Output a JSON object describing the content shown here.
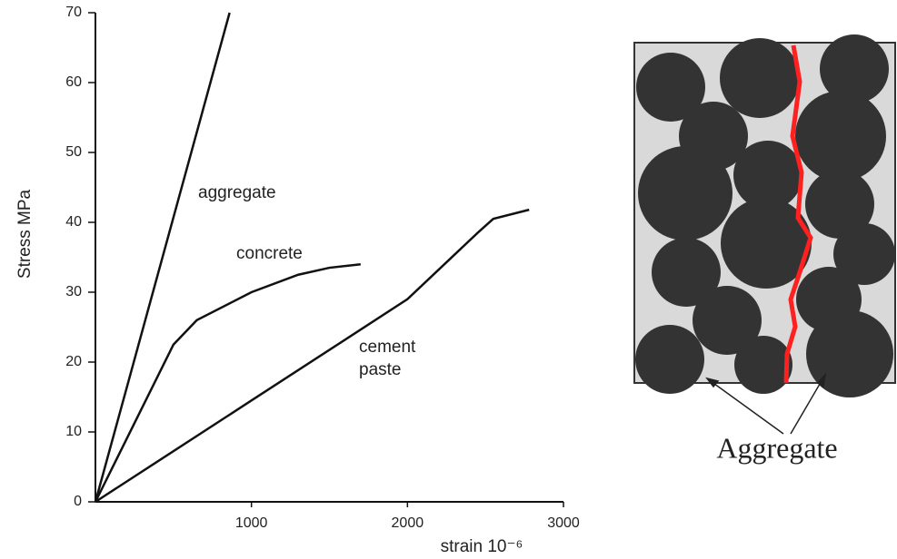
{
  "chart_data": {
    "type": "line",
    "y_label": "Stress MPa",
    "x_label": "strain 10⁻⁶",
    "xlim": [
      0,
      3000
    ],
    "xticks": [
      1000,
      2000,
      3000
    ],
    "ylim": [
      0,
      70
    ],
    "yticks": [
      0,
      10,
      20,
      30,
      40,
      50,
      60,
      70
    ],
    "series": [
      {
        "name": "aggregate",
        "color": "#111111",
        "x": [
          0,
          860
        ],
        "values": [
          0,
          70
        ]
      },
      {
        "name": "concrete",
        "color": "#111111",
        "x": [
          0,
          500,
          650,
          1000,
          1300,
          1500,
          1700
        ],
        "values": [
          0,
          22.5,
          26,
          30,
          32.5,
          33.5,
          34
        ]
      },
      {
        "name": "cement paste",
        "color": "#111111",
        "x": [
          0,
          1000,
          2000,
          2450,
          2550,
          2780
        ],
        "values": [
          0,
          14.5,
          29,
          38.5,
          40.5,
          41.8
        ]
      }
    ]
  },
  "diagram": {
    "label": "Aggregate"
  }
}
